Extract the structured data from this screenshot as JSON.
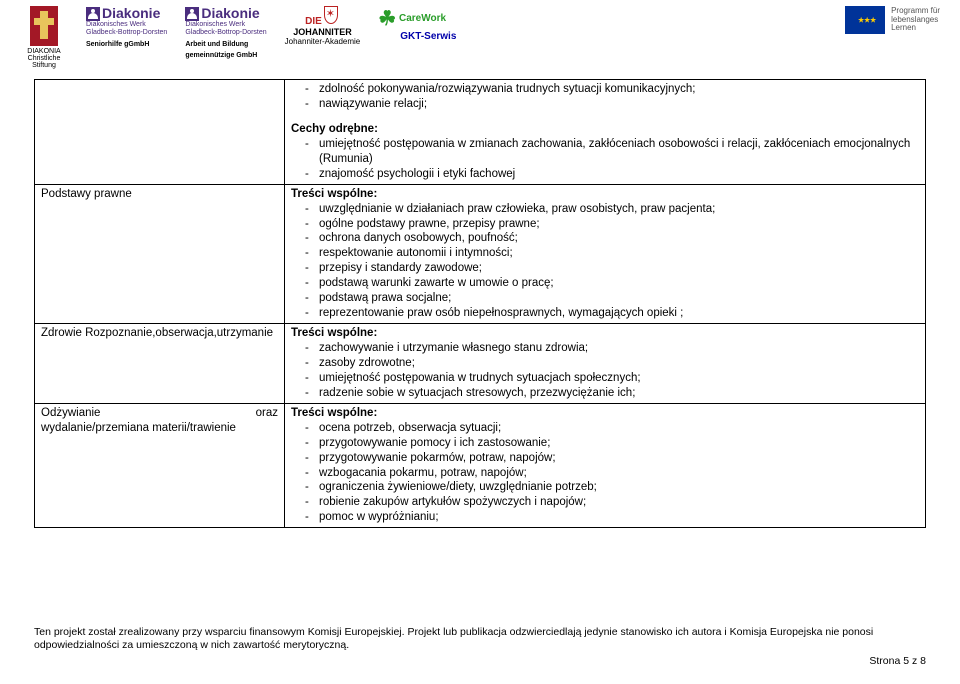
{
  "header": {
    "logos": {
      "diakonia": {
        "caption_line1": "DIAKONIA",
        "caption_line2": "Christliche Stiftung"
      },
      "diakonie1": {
        "title": "Diakonie",
        "sub1": "Diakonisches Werk",
        "sub2": "Gladbeck-Bottrop-Dorsten",
        "bottom1": "Seniorhilfe gGmbH"
      },
      "diakonie2": {
        "title": "Diakonie",
        "sub1": "Diakonisches Werk",
        "sub2": "Gladbeck-Bottrop-Dorsten",
        "bottom1": "Arbeit und Bildung",
        "bottom2": "gemeinnützige GmbH"
      },
      "johanniter": {
        "die": "DIE",
        "name1": "JOHANNITER",
        "name2": "Johanniter-Akademie"
      },
      "carework": {
        "line1": "CareWork",
        "line2": "GKT-Serwis"
      },
      "eu": {
        "line1": "Programm für",
        "line2": "lebenslanges",
        "line3": "Lernen"
      }
    }
  },
  "rows": {
    "intro": {
      "bullets": [
        "zdolność pokonywania/rozwiązywania trudnych sytuacji komunikacyjnych;",
        "nawiązywanie relacji;"
      ],
      "cechy_title": "Cechy odrębne:",
      "cechy": [
        "umiejętność postępowania w zmianach zachowania, zakłóceniach osobowości i relacji, zakłóceniach emocjonalnych (Rumunia)",
        "znajomość psychologii i etyki fachowej"
      ]
    },
    "r1": {
      "label": "Podstawy prawne",
      "title": "Treści wspólne:",
      "bullets": [
        "uwzględnianie w działaniach praw człowieka, praw osobistych, praw pacjenta;",
        "ogólne podstawy prawne, przepisy prawne;",
        "ochrona danych osobowych, poufność;",
        "respektowanie autonomii i intymności;",
        "przepisy i standardy zawodowe;",
        "podstawą warunki zawarte w umowie o pracę;",
        "podstawą prawa socjalne;",
        "reprezentowanie praw osób niepełnosprawnych, wymagających opieki ;"
      ]
    },
    "r2": {
      "label": "Zdrowie Rozpoznanie,obserwacja,utrzymanie",
      "title": "Treści wspólne:",
      "bullets": [
        "zachowywanie i utrzymanie własnego stanu zdrowia;",
        "zasoby zdrowotne;",
        "umiejętność postępowania w trudnych sytuacjach społecznych;",
        "radzenie sobie w sytuacjach stresowych, przezwyciężanie ich;"
      ]
    },
    "r3": {
      "label_l": "Odżywianie",
      "label_r": "oraz",
      "label2": "wydalanie/przemiana materii/trawienie",
      "title": "Treści wspólne:",
      "bullets": [
        "ocena potrzeb, obserwacja sytuacji;",
        "przygotowywanie pomocy i ich zastosowanie;",
        "przygotowywanie pokarmów, potraw, napojów;",
        "wzbogacania pokarmu, potraw, napojów;",
        "ograniczenia żywieniowe/diety, uwzględnianie potrzeb;",
        "robienie zakupów artykułów spożywczych i napojów;",
        "pomoc w wypróżnianiu;"
      ]
    }
  },
  "footer": {
    "text": "Ten projekt został zrealizowany przy wsparciu finansowym Komisji Europejskiej. Projekt lub publikacja odzwierciedlają jedynie stanowisko ich autora i Komisja Europejska nie ponosi odpowiedzialności za umieszczoną w nich zawartość merytoryczną.",
    "page": "Strona 5 z 8"
  }
}
